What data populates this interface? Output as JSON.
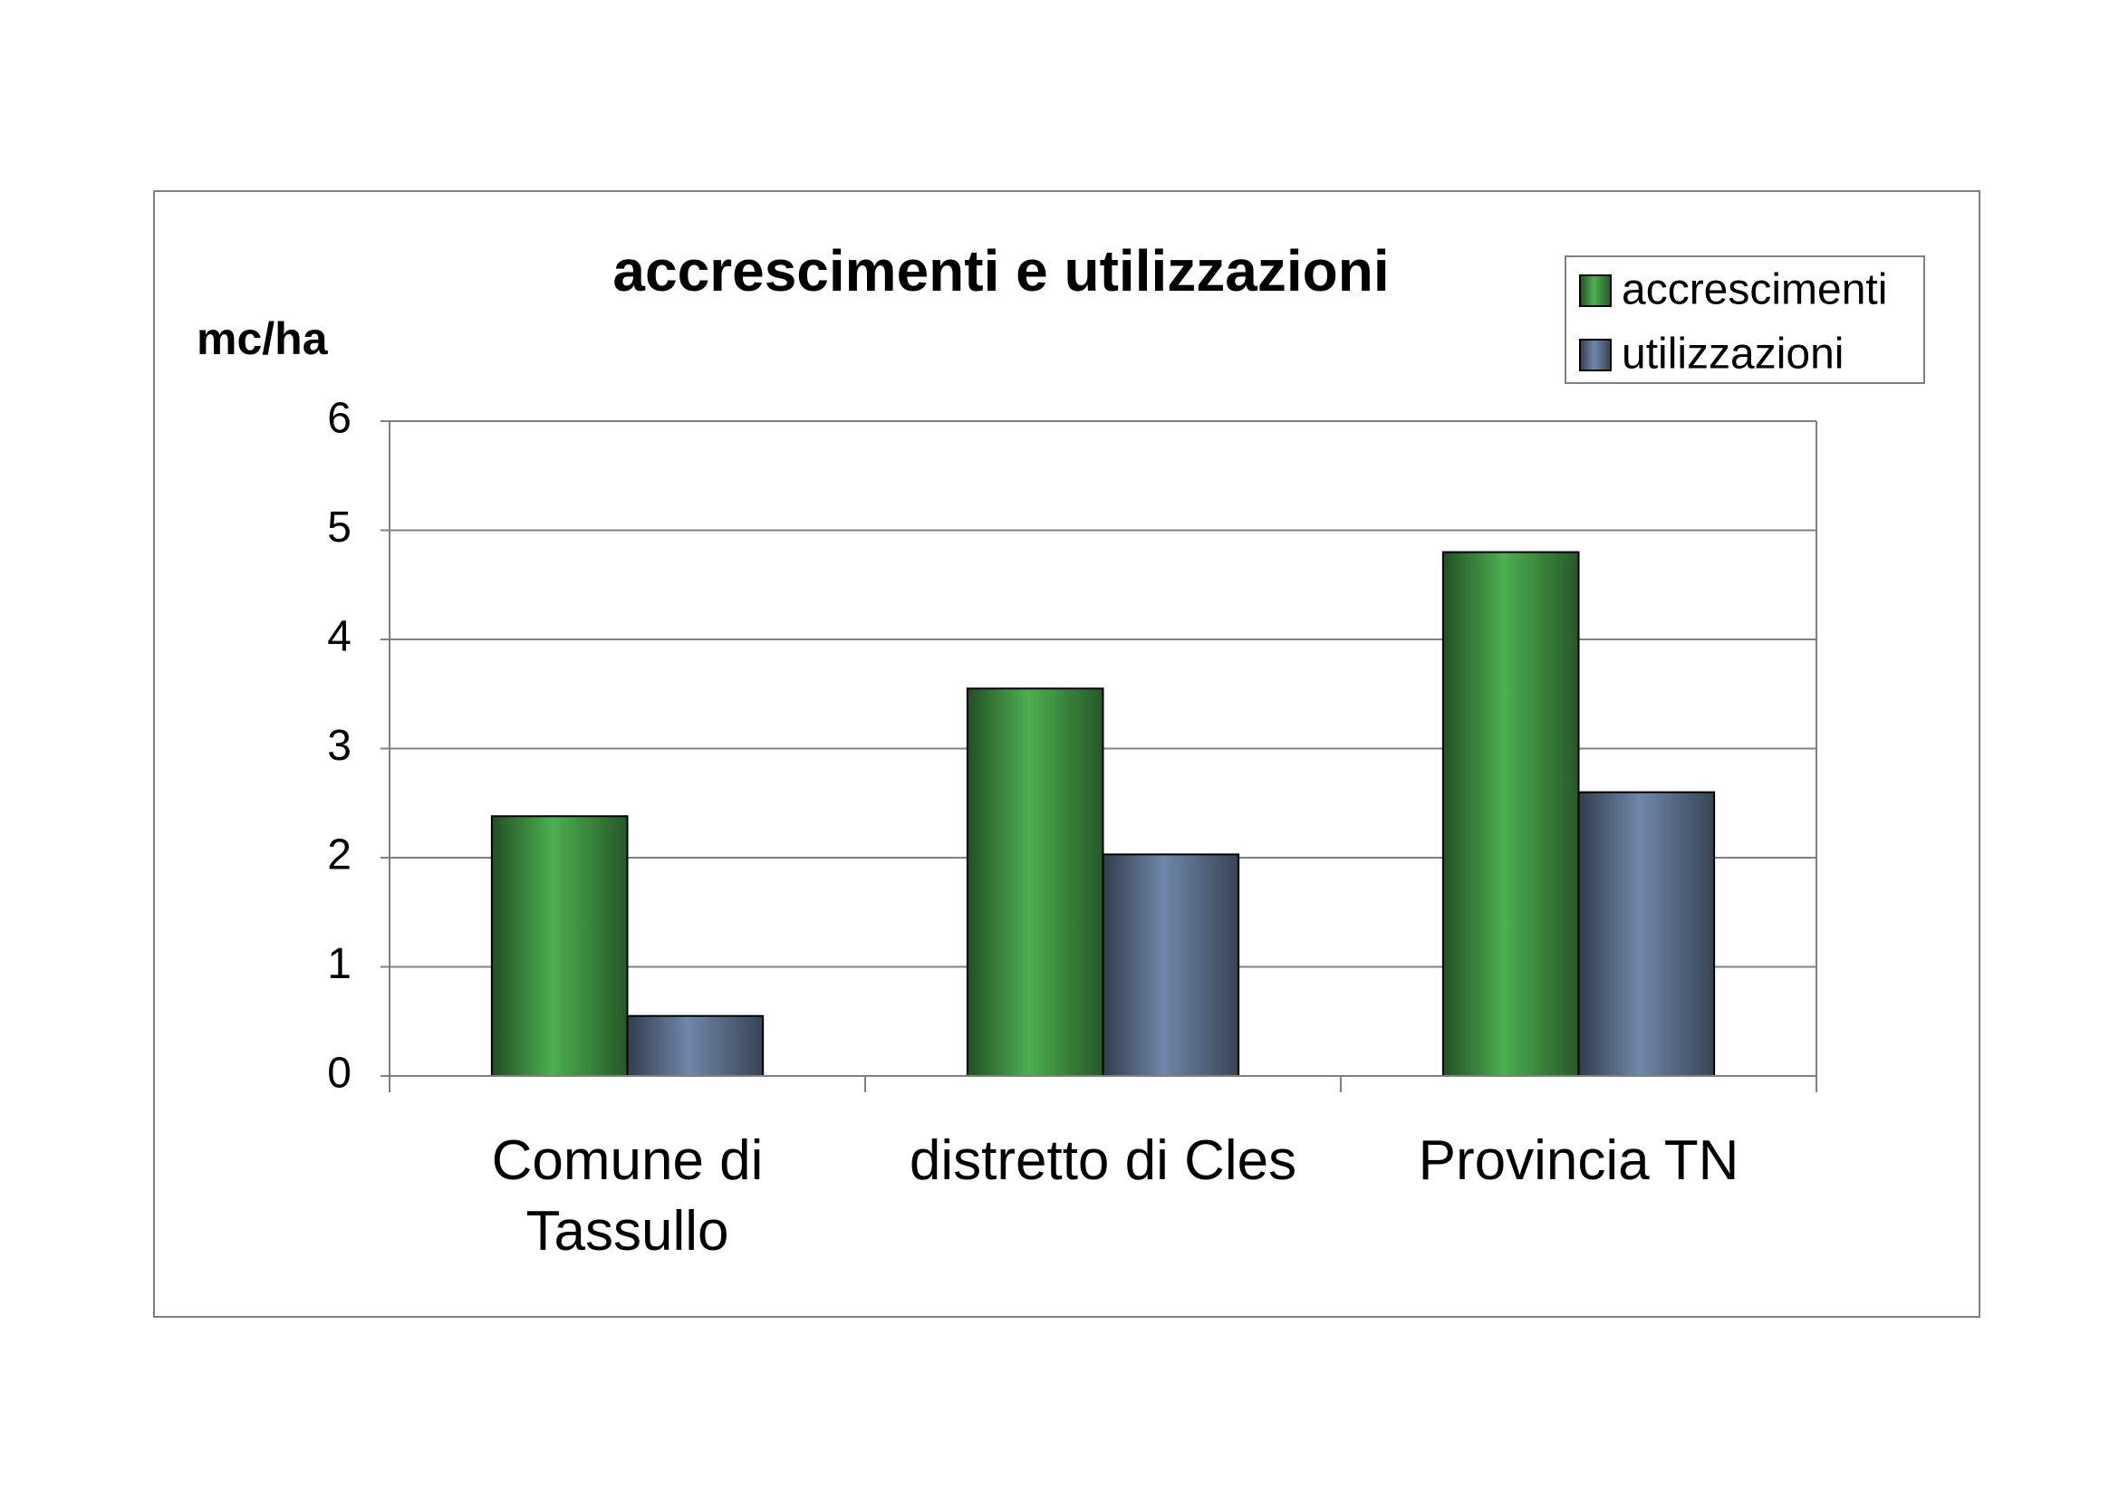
{
  "chart_data": {
    "type": "bar",
    "title": "accrescimenti e utilizzazioni",
    "y_label": "mc/ha",
    "categories": [
      "Comune di Tassullo",
      "distretto di Cles",
      "Provincia TN"
    ],
    "series": [
      {
        "name": "accrescimenti",
        "color": "#4caf50",
        "values": [
          2.38,
          3.55,
          4.8
        ]
      },
      {
        "name": "utilizzazioni",
        "color": "#6f87aa",
        "values": [
          0.55,
          2.03,
          2.6
        ]
      }
    ],
    "ylim": [
      0,
      6
    ],
    "yticks": [
      0,
      1,
      2,
      3,
      4,
      5,
      6
    ],
    "grid": true,
    "legend": "top-right"
  }
}
